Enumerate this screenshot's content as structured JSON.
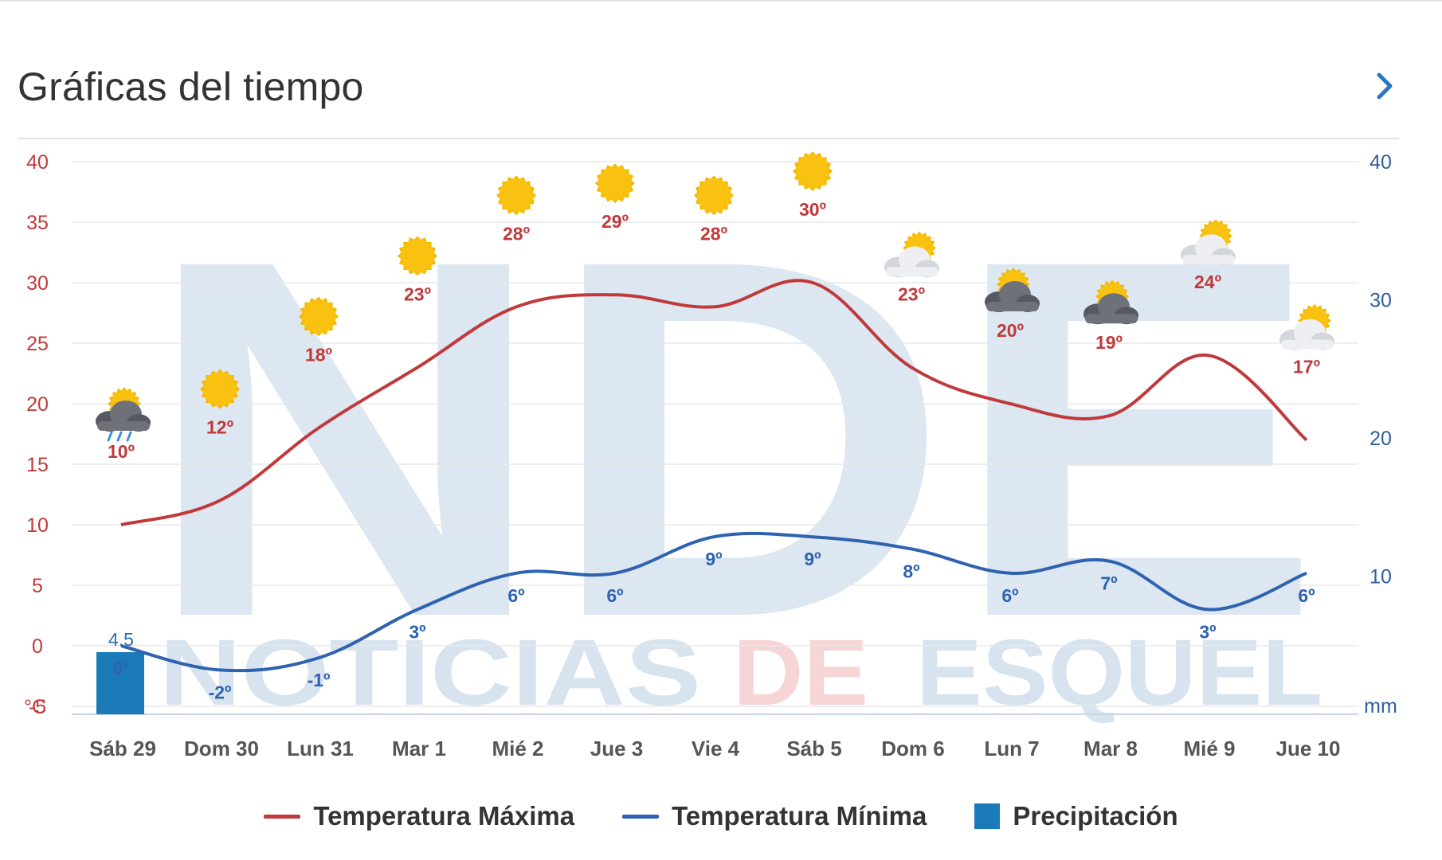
{
  "header": {
    "title": "Gráficas del tiempo",
    "next_icon": "chevron-right-icon"
  },
  "colors": {
    "max": "#c0393b",
    "min": "#2f62b0",
    "precip": "#1a7bb8",
    "left_axis_text": "#c33a3a",
    "right_axis_text": "#2e5e9e",
    "xlabel": "#555555",
    "grid": "#e8e8e8",
    "watermark": "#d7e3ef",
    "watermark_red": "#f5d5d5",
    "sun": "#f5b800"
  },
  "watermark": {
    "logo_text": "NDE",
    "word1": "NOTICIAS",
    "word2": "DE",
    "word3": "ESQUEL"
  },
  "chart_data": {
    "type": "line",
    "categories": [
      "Sáb 29",
      "Dom 30",
      "Lun 31",
      "Mar 1",
      "Mié 2",
      "Jue 3",
      "Vie 4",
      "Sáb 5",
      "Dom 6",
      "Lun 7",
      "Mar 8",
      "Mié 9",
      "Jue 10"
    ],
    "series": [
      {
        "name": "Temperatura Máxima",
        "axis": "left",
        "values": [
          10,
          12,
          18,
          23,
          28,
          29,
          28,
          30,
          23,
          20,
          19,
          24,
          17
        ],
        "labels": [
          "10º",
          "12º",
          "18º",
          "23º",
          "28º",
          "29º",
          "28º",
          "30º",
          "23º",
          "20º",
          "19º",
          "24º",
          "17º"
        ]
      },
      {
        "name": "Temperatura Mínima",
        "axis": "left",
        "values": [
          0,
          -2,
          -1,
          3,
          6,
          6,
          9,
          9,
          8,
          6,
          7,
          3,
          6
        ],
        "labels": [
          "0º",
          "-2º",
          "-1º",
          "3º",
          "6º",
          "6º",
          "9º",
          "9º",
          "8º",
          "6º",
          "7º",
          "3º",
          "6º"
        ]
      },
      {
        "name": "Precipitación",
        "axis": "right",
        "type": "bar",
        "values": [
          4.5,
          0,
          0,
          0,
          0,
          0,
          0,
          0,
          0,
          0,
          0,
          0,
          0
        ],
        "labels": [
          "4.5",
          "",
          "",
          "",
          "",
          "",
          "",
          "",
          "",
          "",
          "",
          "",
          ""
        ]
      }
    ],
    "weather_icons": [
      "rain-sun-cloud-icon",
      "sun-icon",
      "sun-icon",
      "sun-icon",
      "sun-icon",
      "sun-icon",
      "sun-icon",
      "sun-icon",
      "partly-cloudy-icon",
      "dark-cloud-sun-icon",
      "dark-cloud-sun-icon",
      "partly-cloudy-icon",
      "partly-cloudy-icon"
    ],
    "left_axis": {
      "ticks": [
        "40",
        "35",
        "30",
        "25",
        "20",
        "15",
        "10",
        "5",
        "0",
        "-5"
      ],
      "unit": "°C",
      "ylim": [
        -5,
        40
      ]
    },
    "right_axis": {
      "ticks": [
        "40",
        "30",
        "20",
        "10"
      ],
      "unit": "mm",
      "ylim": [
        0,
        40
      ]
    },
    "grid": true,
    "legend_position": "bottom"
  }
}
